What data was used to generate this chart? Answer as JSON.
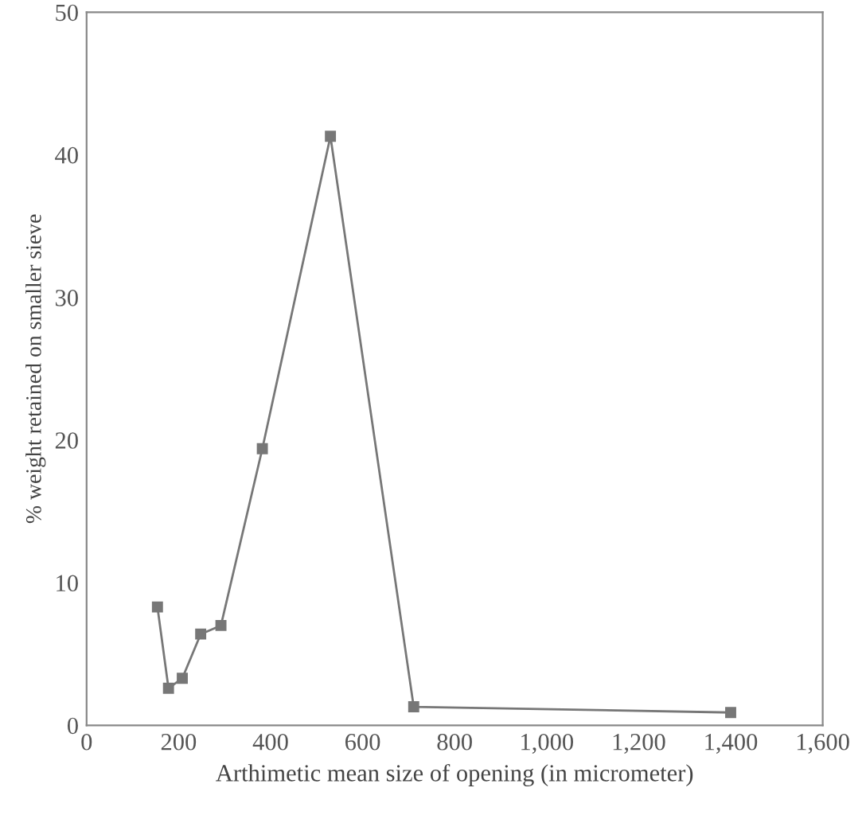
{
  "chart_data": {
    "type": "line",
    "xlabel": "Arthimetic mean size of opening (in micrometer)",
    "ylabel": "% weight retained on smaller sieve",
    "series": [
      {
        "color": "#777777",
        "x": [
          154,
          178,
          208,
          248,
          292,
          382,
          530,
          711,
          1400
        ],
        "values": [
          8.3,
          2.6,
          3.3,
          6.4,
          7.0,
          19.4,
          41.3,
          1.3,
          0.9
        ]
      }
    ],
    "xlim": [
      0,
      1600
    ],
    "xticks": [
      0,
      200,
      400,
      600,
      800,
      {
        "value": 1000,
        "label": "1,000"
      },
      {
        "value": 1200,
        "label": "1,200"
      },
      {
        "value": 1400,
        "label": "1,400"
      },
      {
        "value": 1600,
        "label": "1,600"
      }
    ],
    "ylim": [
      0,
      50
    ],
    "yticks": [
      0,
      10,
      20,
      30,
      40,
      50
    ],
    "marker": "square",
    "line_style": "solid",
    "grid": false,
    "legend": false
  }
}
